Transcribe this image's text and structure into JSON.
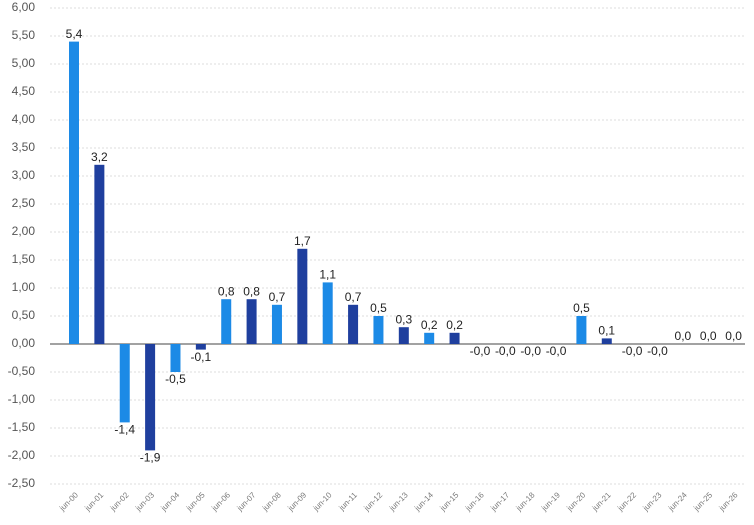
{
  "chart_data": {
    "type": "bar",
    "categories": [
      "jun-00",
      "jun-01",
      "jun-02",
      "jun-03",
      "jun-04",
      "jun-05",
      "jun-06",
      "jun-07",
      "jun-08",
      "jun-09",
      "jun-10",
      "jun-11",
      "jun-12",
      "jun-13",
      "jun-14",
      "jun-15",
      "jun-16",
      "jun-17",
      "jun-18",
      "jun-19",
      "jun-20",
      "jun-21",
      "jun-22",
      "jun-23",
      "jun-24",
      "jun-25",
      "jun-26"
    ],
    "values": [
      5.4,
      3.2,
      -1.4,
      -1.9,
      -0.5,
      -0.1,
      0.8,
      0.8,
      0.7,
      1.7,
      1.1,
      0.7,
      0.5,
      0.3,
      0.2,
      0.2,
      0,
      0,
      0,
      0,
      0.5,
      0.1,
      0,
      0,
      0,
      0,
      0
    ],
    "value_labels": [
      "5,4",
      "3,2",
      "-1,4",
      "-1,9",
      "-0,5",
      "-0,1",
      "0,8",
      "0,8",
      "0,7",
      "1,7",
      "1,1",
      "0,7",
      "0,5",
      "0,3",
      "0,2",
      "0,2",
      "-0,0",
      "-0,0",
      "-0,0",
      "-0,0",
      "0,5",
      "0,1",
      "-0,0",
      "-0,0",
      "0,0",
      "0,0",
      "0,0"
    ],
    "colors": [
      "#1c8ae6",
      "#1f3f9e"
    ],
    "ylim": [
      -2.5,
      6
    ],
    "yticks": [
      {
        "value": -2.5,
        "label": "-2,50"
      },
      {
        "value": -2,
        "label": "-2,00"
      },
      {
        "value": -1.5,
        "label": "-1,50"
      },
      {
        "value": -1,
        "label": "-1,00"
      },
      {
        "value": -0.5,
        "label": "-0,50"
      },
      {
        "value": 0,
        "label": "0,00"
      },
      {
        "value": 0.5,
        "label": "0,50"
      },
      {
        "value": 1,
        "label": "1,00"
      },
      {
        "value": 1.5,
        "label": "1,50"
      },
      {
        "value": 2,
        "label": "2,00"
      },
      {
        "value": 2.5,
        "label": "2,50"
      },
      {
        "value": 3,
        "label": "3,00"
      },
      {
        "value": 3.5,
        "label": "3,50"
      },
      {
        "value": 4,
        "label": "4,00"
      },
      {
        "value": 4.5,
        "label": "4,50"
      },
      {
        "value": 5,
        "label": "5,00"
      },
      {
        "value": 5.5,
        "label": "5,50"
      },
      {
        "value": 6,
        "label": "6,00"
      }
    ],
    "grid": true
  }
}
